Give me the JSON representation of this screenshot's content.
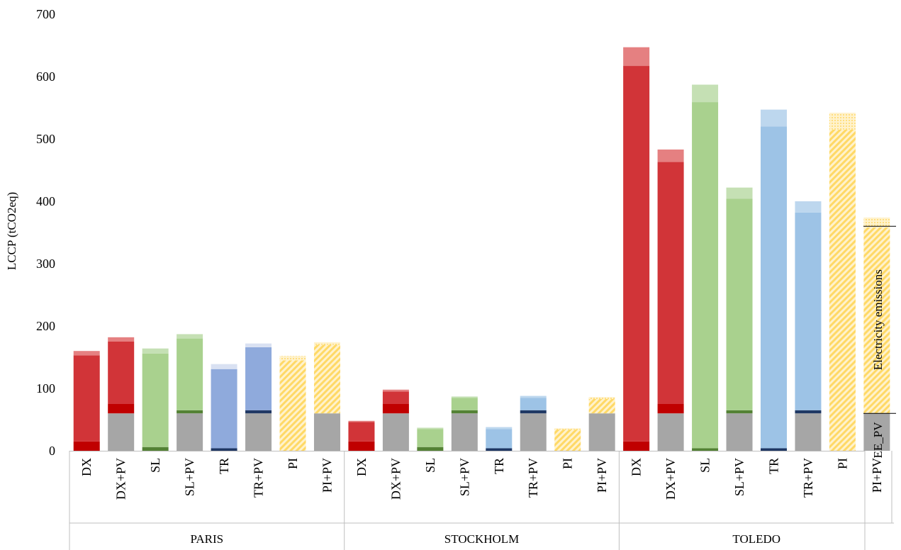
{
  "chart_data": {
    "type": "bar",
    "stacked": true,
    "ylabel": "LCCP (tCO2eq)",
    "ylim": [
      0,
      700
    ],
    "yticks": [
      0,
      100,
      200,
      300,
      400,
      500,
      600,
      700
    ],
    "grid": false,
    "groups": [
      {
        "name": "PARIS",
        "bars": [
          {
            "label": "DX",
            "pv": 0,
            "direct": 15,
            "electricity": 138,
            "top": 7,
            "color": "red",
            "pattern": "solid"
          },
          {
            "label": "DX+PV",
            "pv": 60,
            "direct": 15,
            "electricity": 100,
            "top": 7,
            "color": "red",
            "pattern": "solid"
          },
          {
            "label": "SL",
            "pv": 0,
            "direct": 6,
            "electricity": 150,
            "top": 8,
            "color": "green",
            "pattern": "solid"
          },
          {
            "label": "SL+PV",
            "pv": 60,
            "direct": 5,
            "electricity": 115,
            "top": 7,
            "color": "green",
            "pattern": "solid"
          },
          {
            "label": "TR",
            "pv": 0,
            "direct": 4,
            "electricity": 127,
            "top": 8,
            "color": "blue",
            "pattern": "solid"
          },
          {
            "label": "TR+PV",
            "pv": 60,
            "direct": 5,
            "electricity": 101,
            "top": 6,
            "color": "blue",
            "pattern": "solid"
          },
          {
            "label": "PI",
            "pv": 0,
            "direct": 0,
            "electricity": 145,
            "top": 7,
            "color": "yellow",
            "pattern": "hatch"
          },
          {
            "label": "PI+PV",
            "pv": 60,
            "direct": 0,
            "electricity": 110,
            "top": 4,
            "color": "yellow",
            "pattern": "hatch"
          }
        ]
      },
      {
        "name": "STOCKHOLM",
        "bars": [
          {
            "label": "DX",
            "pv": 0,
            "direct": 15,
            "electricity": 31,
            "top": 2,
            "color": "red",
            "pattern": "solid"
          },
          {
            "label": "DX+PV",
            "pv": 60,
            "direct": 15,
            "electricity": 20,
            "top": 3,
            "color": "red",
            "pattern": "solid"
          },
          {
            "label": "SL",
            "pv": 0,
            "direct": 6,
            "electricity": 29,
            "top": 2,
            "color": "green",
            "pattern": "solid"
          },
          {
            "label": "SL+PV",
            "pv": 60,
            "direct": 5,
            "electricity": 20,
            "top": 2,
            "color": "green",
            "pattern": "solid"
          },
          {
            "label": "TR",
            "pv": 0,
            "direct": 4,
            "electricity": 31,
            "top": 3,
            "color": "blue",
            "pattern": "solid"
          },
          {
            "label": "TR+PV",
            "pv": 60,
            "direct": 5,
            "electricity": 20,
            "top": 3,
            "color": "blue",
            "pattern": "solid"
          },
          {
            "label": "PI",
            "pv": 0,
            "direct": 0,
            "electricity": 34,
            "top": 2,
            "color": "yellow",
            "pattern": "hatch"
          },
          {
            "label": "PI+PV",
            "pv": 60,
            "direct": 0,
            "electricity": 23,
            "top": 3,
            "color": "yellow",
            "pattern": "hatch"
          }
        ]
      },
      {
        "name": "TOLEDO",
        "bars": [
          {
            "label": "DX",
            "pv": 0,
            "direct": 15,
            "electricity": 602,
            "top": 30,
            "color": "red",
            "pattern": "solid"
          },
          {
            "label": "DX+PV",
            "pv": 60,
            "direct": 15,
            "electricity": 388,
            "top": 20,
            "color": "red",
            "pattern": "solid"
          },
          {
            "label": "SL",
            "pv": 0,
            "direct": 4,
            "electricity": 555,
            "top": 28,
            "color": "green",
            "pattern": "solid"
          },
          {
            "label": "SL+PV",
            "pv": 60,
            "direct": 5,
            "electricity": 339,
            "top": 18,
            "color": "green",
            "pattern": "solid"
          },
          {
            "label": "TR",
            "pv": 0,
            "direct": 4,
            "electricity": 516,
            "top": 27,
            "color": "blue",
            "pattern": "solid"
          },
          {
            "label": "TR+PV",
            "pv": 60,
            "direct": 5,
            "electricity": 317,
            "top": 18,
            "color": "blue",
            "pattern": "solid"
          },
          {
            "label": "PI",
            "pv": 0,
            "direct": 0,
            "electricity": 515,
            "top": 27,
            "color": "yellow",
            "pattern": "hatch"
          },
          {
            "label": "PI+PV",
            "pv": 60,
            "direct": 0,
            "electricity": 298,
            "top": 16,
            "color": "yellow",
            "pattern": "hatch"
          }
        ]
      }
    ],
    "annotations": [
      {
        "text": "Electricity emissions",
        "from": 60,
        "to": 360
      },
      {
        "text": "EE_PV",
        "from": 0,
        "to": 60
      }
    ],
    "colors": {
      "pv": "#a6a6a6",
      "red": {
        "main": "#d13438",
        "dark": "#c00000",
        "light": "#e58081"
      },
      "green": {
        "main": "#a9d18e",
        "dark": "#548235",
        "light": "#c5e0b4"
      },
      "blue_paris": {
        "main": "#8faadc",
        "dark": "#203864",
        "light": "#d9e1f2"
      },
      "blue": {
        "main": "#9dc3e6",
        "dark": "#1f3864",
        "light": "#bdd7ee"
      },
      "yellow": {
        "main": "#ffe699",
        "stripe": "#ffd966",
        "light": "#fff2cc"
      }
    }
  }
}
